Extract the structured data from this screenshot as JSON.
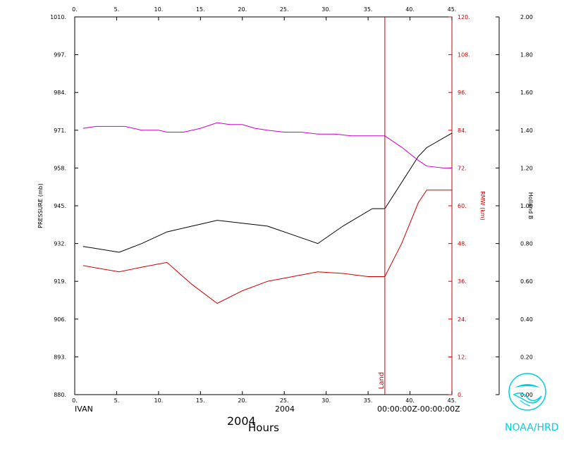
{
  "chart_data": {
    "type": "line",
    "xlabel": "Hours",
    "xlim": [
      0,
      45
    ],
    "x_ticks": [
      0,
      5,
      10,
      15,
      20,
      25,
      30,
      35,
      40,
      45
    ],
    "x_tick_labels": [
      "0.",
      "5.",
      "10.",
      "15.",
      "20.",
      "25.",
      "30.",
      "35.",
      "40.",
      "45."
    ],
    "y_left": {
      "label": "PRESSURE (mb)",
      "lim": [
        880,
        1010
      ],
      "ticks": [
        880,
        893,
        906,
        919,
        932,
        945,
        958,
        971,
        984,
        997,
        1010
      ],
      "tick_labels": [
        "880.",
        "893.",
        "906.",
        "919.",
        "932.",
        "945.",
        "958.",
        "971.",
        "984.",
        "997.",
        "1010."
      ],
      "color": "#000000"
    },
    "y_right_1": {
      "label": "RMW (km)",
      "lim": [
        0,
        120
      ],
      "ticks": [
        0,
        12,
        24,
        36,
        48,
        60,
        72,
        84,
        96,
        108,
        120
      ],
      "tick_labels": [
        "0.",
        "12.",
        "24.",
        "36.",
        "48.",
        "60.",
        "72.",
        "84.",
        "96.",
        "108.",
        "120."
      ],
      "color": "#cc0000"
    },
    "y_right_2": {
      "label": "Holland B",
      "lim": [
        0,
        2
      ],
      "ticks": [
        0,
        0.2,
        0.4,
        0.6,
        0.8,
        1.0,
        1.2,
        1.4,
        1.6,
        1.8,
        2.0
      ],
      "tick_labels": [
        "0.00",
        "0.20",
        "0.40",
        "0.60",
        "0.80",
        "1.00",
        "1.20",
        "1.40",
        "1.60",
        "1.80",
        "2.00"
      ],
      "color": "#000000"
    },
    "series": [
      {
        "axis": "left",
        "color": "#000000",
        "x": [
          1,
          5.3,
          8,
          11,
          14,
          17,
          20,
          23,
          26,
          29,
          32,
          35.5,
          37,
          39,
          41,
          42,
          45
        ],
        "values": [
          931,
          929,
          932,
          936,
          938,
          940,
          939,
          938,
          935,
          932,
          938,
          944,
          944,
          953,
          962,
          965,
          970
        ]
      },
      {
        "axis": "right_1",
        "color": "#cc0000",
        "x": [
          1,
          5.3,
          8,
          11,
          14,
          17,
          20,
          23,
          25,
          29,
          32,
          35,
          37,
          39,
          41,
          42,
          45
        ],
        "values": [
          41,
          39,
          40.5,
          42,
          35,
          29,
          33,
          36,
          37,
          39,
          38.5,
          37.5,
          37.5,
          48,
          61,
          65,
          65
        ]
      },
      {
        "axis": "right_2",
        "color": "#cc00cc",
        "x": [
          1,
          2.5,
          6,
          8,
          10,
          11,
          13,
          15,
          17,
          18.5,
          20,
          21.5,
          23,
          25,
          27,
          29,
          31,
          33,
          35,
          37,
          39,
          41,
          42,
          44,
          45
        ],
        "values": [
          1.41,
          1.42,
          1.42,
          1.4,
          1.4,
          1.39,
          1.39,
          1.41,
          1.44,
          1.43,
          1.43,
          1.41,
          1.4,
          1.39,
          1.39,
          1.38,
          1.38,
          1.37,
          1.37,
          1.37,
          1.31,
          1.24,
          1.21,
          1.2,
          1.2
        ]
      }
    ],
    "landfall": {
      "x": 37,
      "label": "Land",
      "color": "#cc0000"
    }
  },
  "footer": {
    "storm": "IVAN",
    "year_center": "2004",
    "time_range": "00:00:00Z-00:00:00Z",
    "year_big": "2004",
    "org": "NOAA/HRD"
  },
  "logo": {
    "text": "noaa",
    "color": "#00cfe0"
  }
}
